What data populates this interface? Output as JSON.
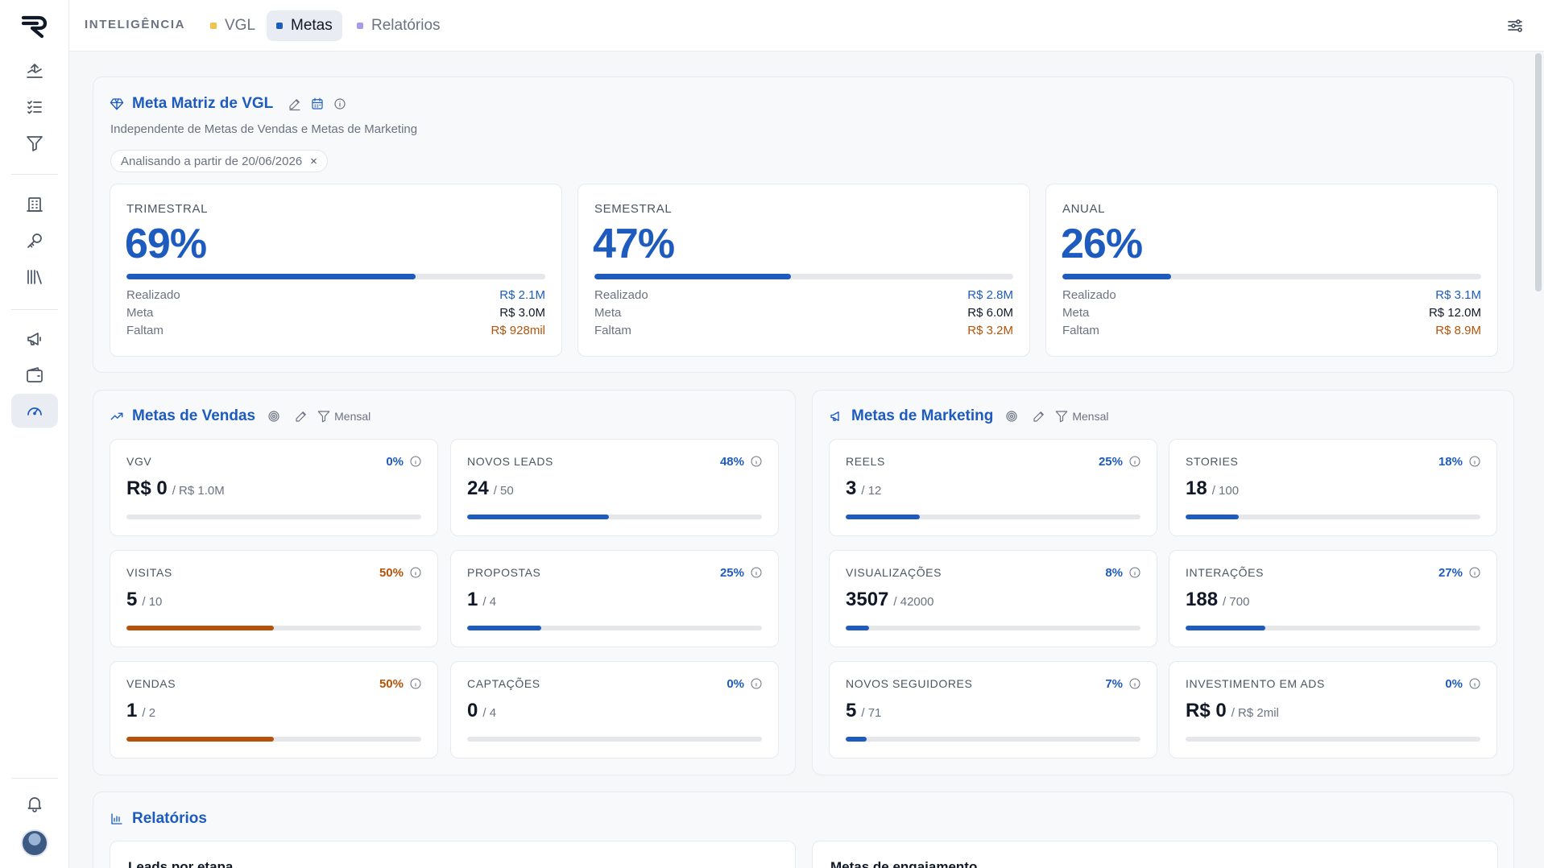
{
  "topbar": {
    "brand": "INTELIGÊNCIA",
    "tabs": [
      {
        "label": "VGL",
        "dot_color": "#f2c14e"
      },
      {
        "label": "Metas",
        "dot_color": "#1e5bbf"
      },
      {
        "label": "Relatórios",
        "dot_color": "#a99be6"
      }
    ],
    "active_tab": "Metas"
  },
  "sidebar": {
    "items": [
      {
        "icon": "upload-chart-icon"
      },
      {
        "icon": "checklist-icon"
      },
      {
        "icon": "filter-icon"
      },
      {
        "icon": "building-icon"
      },
      {
        "icon": "key-icon"
      },
      {
        "icon": "library-icon"
      },
      {
        "icon": "megaphone-icon"
      },
      {
        "icon": "wallet-icon"
      },
      {
        "icon": "gauge-icon",
        "active": true
      }
    ],
    "bottom": [
      {
        "icon": "bell-icon"
      },
      {
        "icon": "avatar"
      }
    ]
  },
  "matriz": {
    "title": "Meta Matriz de VGL",
    "subtitle": "Independente de Metas de Vendas e Metas de Marketing",
    "chip": "Analisando a partir de 20/06/2026",
    "chip_close": "×",
    "periods": [
      {
        "label": "TRIMESTRAL",
        "pct": "69%",
        "progress": 0.69,
        "realizado_label": "Realizado",
        "realizado": "R$ 2.1M",
        "meta_label": "Meta",
        "meta": "R$ 3.0M",
        "faltam_label": "Faltam",
        "faltam": "R$ 928mil"
      },
      {
        "label": "SEMESTRAL",
        "pct": "47%",
        "progress": 0.47,
        "realizado_label": "Realizado",
        "realizado": "R$ 2.8M",
        "meta_label": "Meta",
        "meta": "R$ 6.0M",
        "faltam_label": "Faltam",
        "faltam": "R$ 3.2M"
      },
      {
        "label": "ANUAL",
        "pct": "26%",
        "progress": 0.26,
        "realizado_label": "Realizado",
        "realizado": "R$ 3.1M",
        "meta_label": "Meta",
        "meta": "R$ 12.0M",
        "faltam_label": "Faltam",
        "faltam": "R$ 8.9M"
      }
    ]
  },
  "vendas": {
    "title": "Metas de Vendas",
    "filter": "Mensal",
    "cards": [
      {
        "label": "VGV",
        "pct": "0%",
        "pct_color": "#1e5bbf",
        "value": "R$ 0",
        "target": "/ R$ 1.0M",
        "progress": 0,
        "bar_color": "#1e5bbf"
      },
      {
        "label": "NOVOS LEADS",
        "pct": "48%",
        "pct_color": "#1e5bbf",
        "value": "24",
        "target": "/ 50",
        "progress": 0.48,
        "bar_color": "#1e5bbf"
      },
      {
        "label": "VISITAS",
        "pct": "50%",
        "pct_color": "#b45309",
        "value": "5",
        "target": "/ 10",
        "progress": 0.5,
        "bar_color": "#b45309"
      },
      {
        "label": "PROPOSTAS",
        "pct": "25%",
        "pct_color": "#1e5bbf",
        "value": "1",
        "target": "/ 4",
        "progress": 0.25,
        "bar_color": "#1e5bbf"
      },
      {
        "label": "VENDAS",
        "pct": "50%",
        "pct_color": "#b45309",
        "value": "1",
        "target": "/ 2",
        "progress": 0.5,
        "bar_color": "#b45309"
      },
      {
        "label": "CAPTAÇÕES",
        "pct": "0%",
        "pct_color": "#1e5bbf",
        "value": "0",
        "target": "/ 4",
        "progress": 0,
        "bar_color": "#1e5bbf"
      }
    ]
  },
  "marketing": {
    "title": "Metas de Marketing",
    "filter": "Mensal",
    "cards": [
      {
        "label": "REELS",
        "pct": "25%",
        "pct_color": "#1e5bbf",
        "value": "3",
        "target": "/ 12",
        "progress": 0.25,
        "bar_color": "#1e5bbf"
      },
      {
        "label": "STORIES",
        "pct": "18%",
        "pct_color": "#1e5bbf",
        "value": "18",
        "target": "/ 100",
        "progress": 0.18,
        "bar_color": "#1e5bbf"
      },
      {
        "label": "VISUALIZAÇÕES",
        "pct": "8%",
        "pct_color": "#1e5bbf",
        "value": "3507",
        "target": "/ 42000",
        "progress": 0.08,
        "bar_color": "#1e5bbf"
      },
      {
        "label": "INTERAÇÕES",
        "pct": "27%",
        "pct_color": "#1e5bbf",
        "value": "188",
        "target": "/ 700",
        "progress": 0.27,
        "bar_color": "#1e5bbf"
      },
      {
        "label": "NOVOS SEGUIDORES",
        "pct": "7%",
        "pct_color": "#1e5bbf",
        "value": "5",
        "target": "/ 71",
        "progress": 0.07,
        "bar_color": "#1e5bbf"
      },
      {
        "label": "INVESTIMENTO EM ADS",
        "pct": "0%",
        "pct_color": "#1e5bbf",
        "value": "R$ 0",
        "target": "/ R$ 2mil",
        "progress": 0,
        "bar_color": "#1e5bbf"
      }
    ]
  },
  "relatorios": {
    "title": "Relatórios",
    "cards": [
      {
        "title": "Leads por etapa"
      },
      {
        "title": "Metas de engajamento"
      }
    ]
  }
}
